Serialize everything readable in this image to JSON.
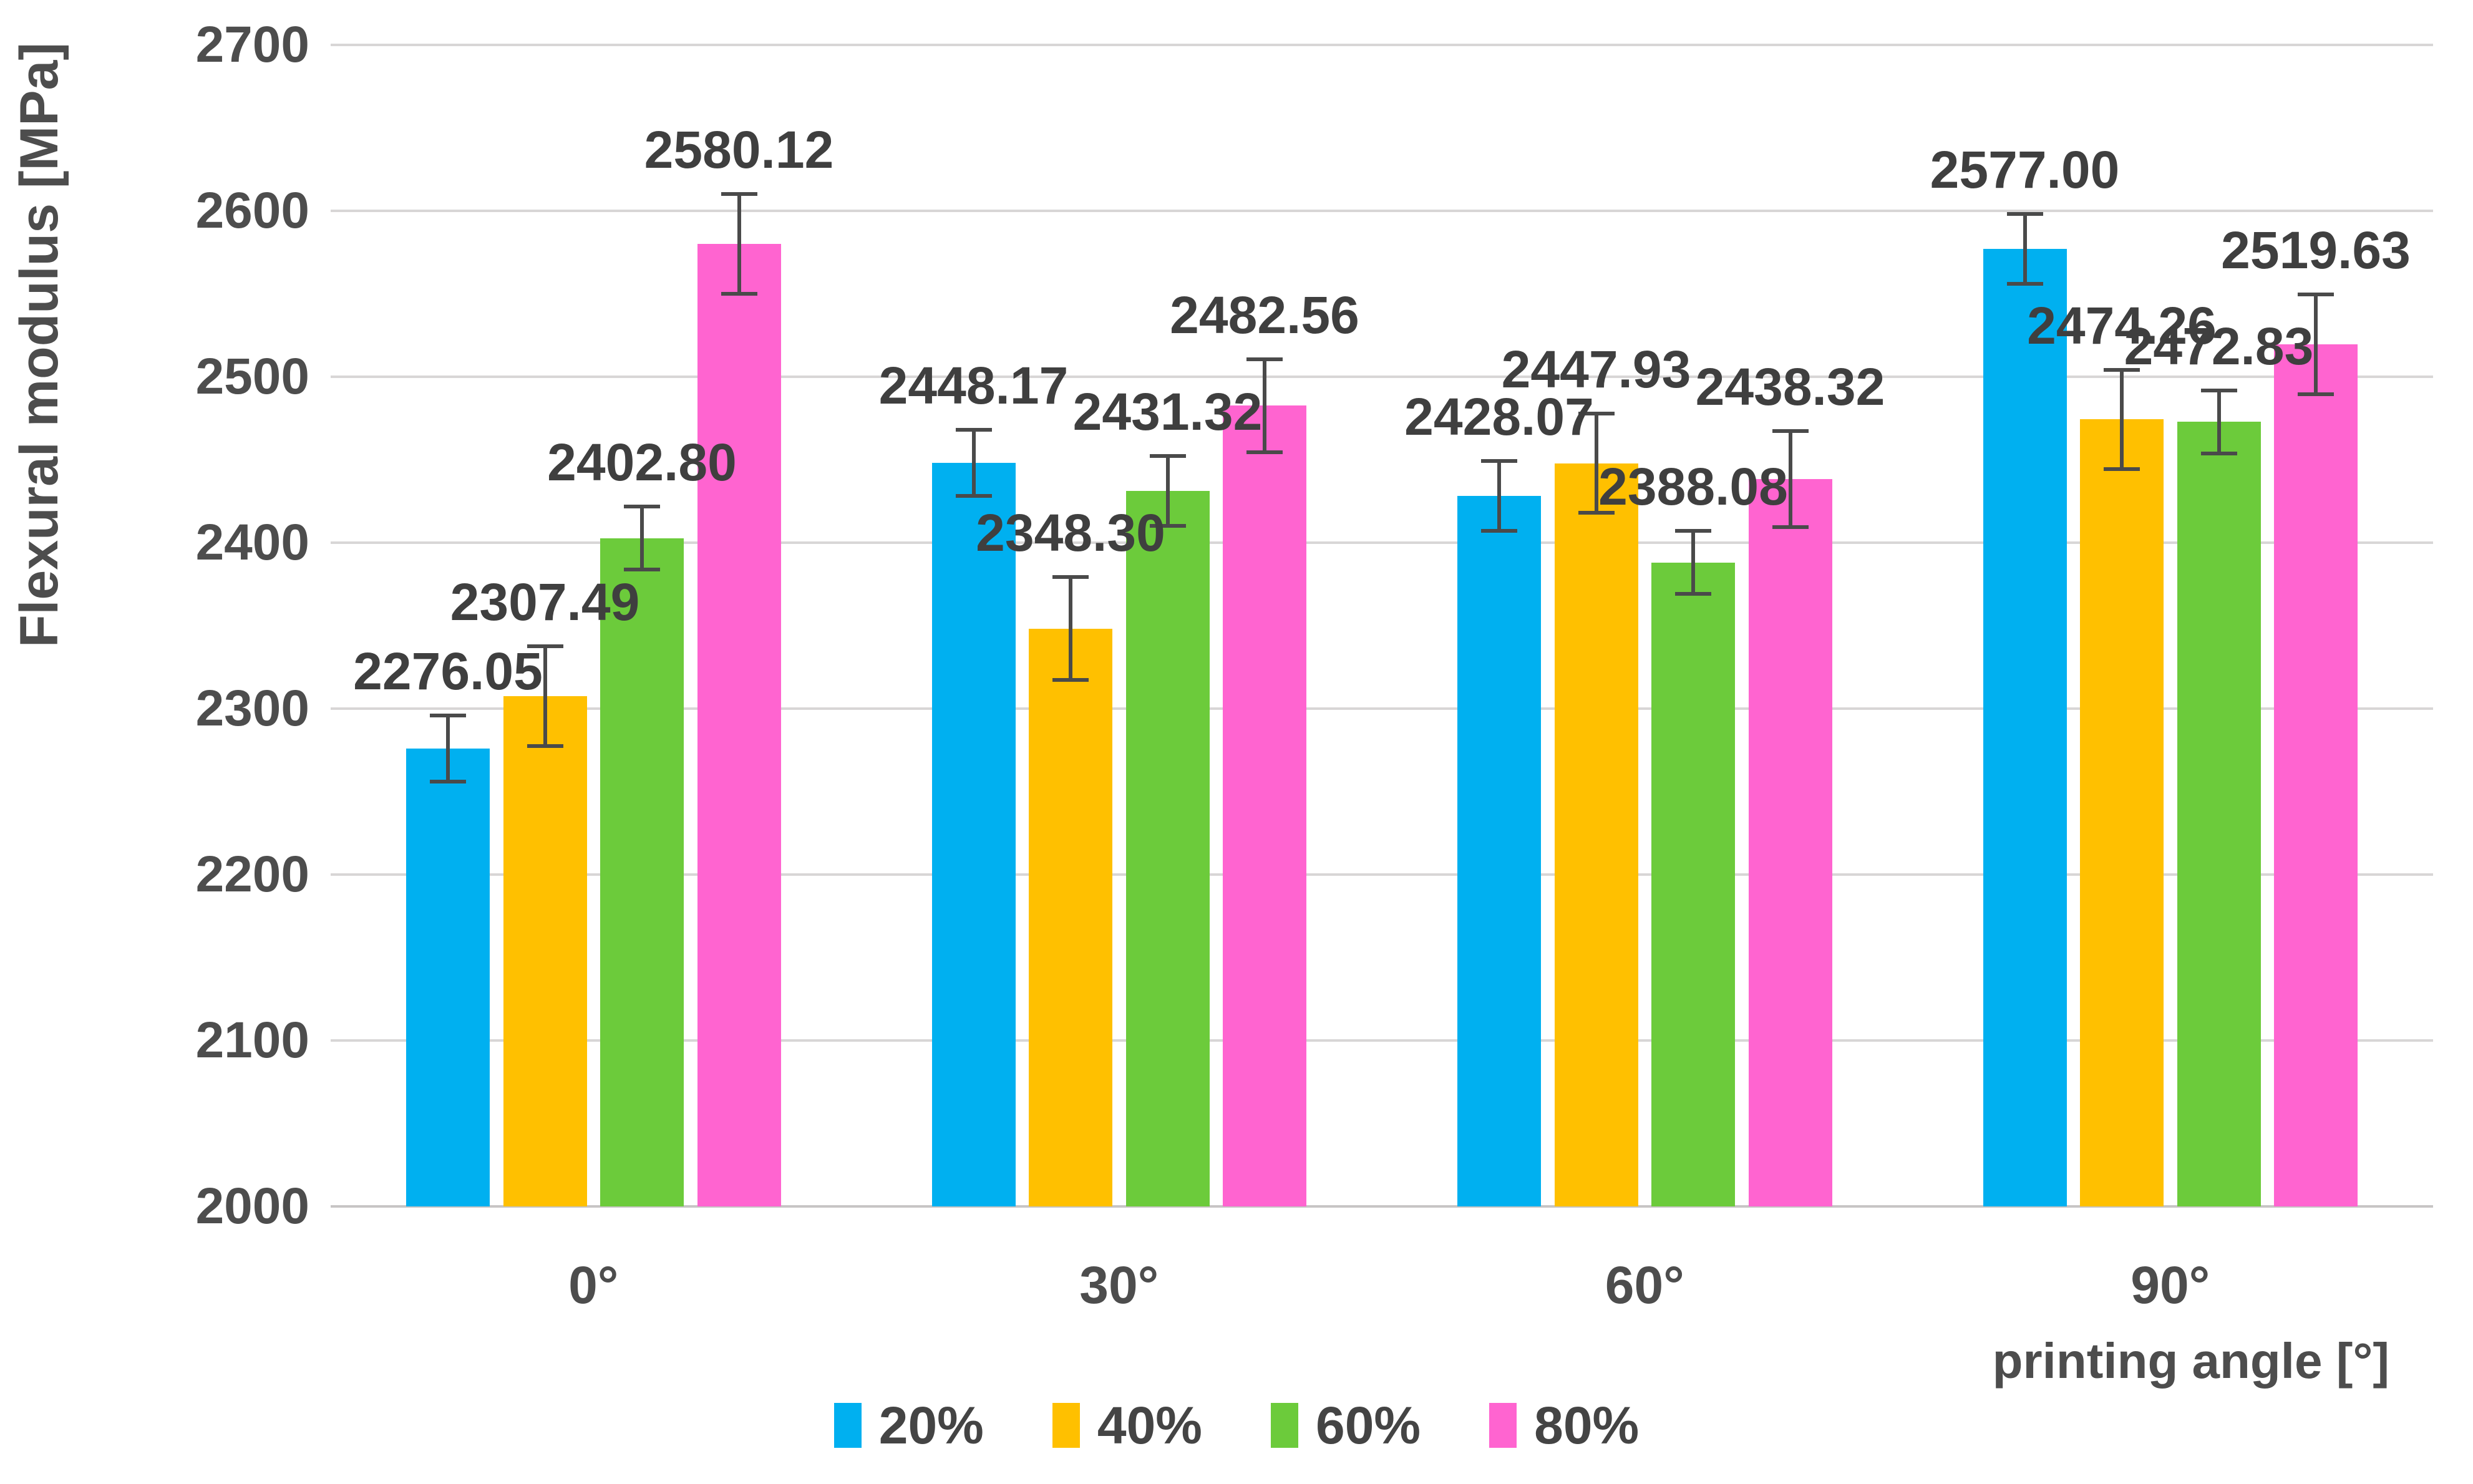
{
  "chart_data": {
    "type": "bar",
    "title": "",
    "xlabel": "printing angle [°]",
    "ylabel": "Flexural modulus [MPa]",
    "categories": [
      "0°",
      "30°",
      "60°",
      "90°"
    ],
    "series": [
      {
        "name": "20%",
        "color": "#00b0f0",
        "values": [
          2276.05,
          2448.17,
          2428.07,
          2577.0
        ],
        "errors": [
          20,
          20,
          21,
          21
        ]
      },
      {
        "name": "40%",
        "color": "#ffc000",
        "values": [
          2307.49,
          2348.3,
          2447.93,
          2474.26
        ],
        "errors": [
          30,
          31,
          30,
          30
        ]
      },
      {
        "name": "60%",
        "color": "#6ccb3b",
        "values": [
          2402.8,
          2431.32,
          2388.08,
          2472.83
        ],
        "errors": [
          19,
          21,
          19,
          19
        ]
      },
      {
        "name": "80%",
        "color": "#ff64d0",
        "values": [
          2580.12,
          2482.56,
          2438.32,
          2519.63
        ],
        "errors": [
          30,
          28,
          29,
          30
        ]
      }
    ],
    "value_labels": [
      "2276.05",
      "2307.49",
      "2402.80",
      "2580.12",
      "2448.17",
      "2348.30",
      "2431.32",
      "2482.56",
      "2428.07",
      "2447.93",
      "2388.08",
      "2438.32",
      "2577.00",
      "2474.26",
      "2472.83",
      "2519.63"
    ],
    "ylim": [
      2000,
      2700
    ],
    "ytick_step": 100,
    "ytick_labels": [
      "2000",
      "2100",
      "2200",
      "2300",
      "2400",
      "2500",
      "2600",
      "2700"
    ],
    "grid": true,
    "error_bars": true,
    "legend_position": "bottom",
    "colors": {
      "gridline": "#d8d6d6",
      "axis_line": "#c7c5c5",
      "text": "#4d4d4d",
      "value_label_text": "#3f3f3f",
      "error_bar": "#4a4a4a"
    }
  }
}
